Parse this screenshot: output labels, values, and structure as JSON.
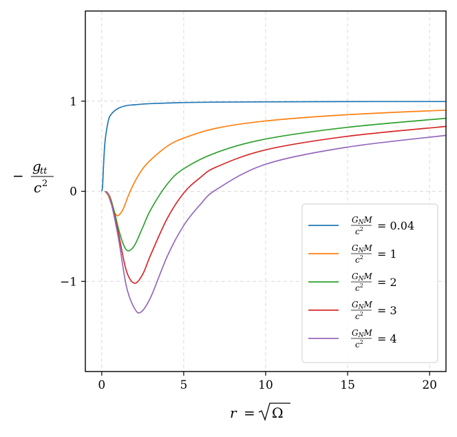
{
  "chart_data": {
    "type": "line",
    "xlabel_parts": {
      "var": "r",
      "eq": "=",
      "radicand": "Ω"
    },
    "ylabel_parts": {
      "minus": "−",
      "numer": "g",
      "numer_sub": "tt",
      "denom": "c",
      "denom_sup": "2"
    },
    "xlim": [
      -1,
      21
    ],
    "ylim": [
      -2,
      2
    ],
    "xticks": [
      0,
      5,
      10,
      15,
      20
    ],
    "xtick_labels": [
      "0",
      "5",
      "10",
      "15",
      "20"
    ],
    "yticks": [
      -1,
      0,
      1
    ],
    "ytick_labels": [
      "−1",
      "0",
      "1"
    ],
    "grid": true,
    "legend_position": "lower right",
    "legend_frac": {
      "numer": "G",
      "numer_sub": "N",
      "numer_tail": "M",
      "denom": "c",
      "denom_sup": "2"
    },
    "series": [
      {
        "param": "0.04",
        "color": "#1f77b4",
        "x": [
          0.0,
          0.05,
          0.1,
          0.2,
          0.4,
          0.6,
          1.0,
          1.5,
          2.0,
          3.0,
          5.0,
          7.0,
          10.0,
          15.0,
          20.0,
          21.0
        ],
        "y": [
          0.0,
          0.05,
          0.25,
          0.55,
          0.78,
          0.86,
          0.92,
          0.95,
          0.96,
          0.973,
          0.984,
          0.989,
          0.992,
          0.995,
          0.996,
          0.996
        ]
      },
      {
        "param": "1",
        "color": "#ff7f0e",
        "x": [
          0.2,
          0.4,
          0.6,
          0.8,
          1.0,
          1.3,
          1.6,
          2.0,
          2.5,
          3.0,
          4.0,
          5.0,
          7.0,
          10.0,
          15.0,
          21.0
        ],
        "y": [
          0.0,
          -0.05,
          -0.15,
          -0.24,
          -0.27,
          -0.2,
          -0.06,
          0.1,
          0.25,
          0.35,
          0.5,
          0.59,
          0.7,
          0.78,
          0.85,
          0.9
        ]
      },
      {
        "param": "2",
        "color": "#2ca02c",
        "x": [
          0.2,
          0.5,
          0.8,
          1.0,
          1.3,
          1.6,
          2.0,
          2.5,
          3.0,
          4.0,
          5.0,
          7.0,
          10.0,
          15.0,
          21.0
        ],
        "y": [
          0.0,
          -0.06,
          -0.25,
          -0.4,
          -0.58,
          -0.66,
          -0.6,
          -0.4,
          -0.2,
          0.08,
          0.25,
          0.43,
          0.58,
          0.71,
          0.81
        ]
      },
      {
        "param": "3",
        "color": "#d62728",
        "x": [
          0.2,
          0.5,
          1.0,
          1.5,
          2.0,
          2.5,
          3.0,
          4.0,
          5.0,
          6.0,
          7.0,
          10.0,
          15.0,
          21.0
        ],
        "y": [
          0.0,
          -0.07,
          -0.45,
          -0.88,
          -1.02,
          -0.92,
          -0.7,
          -0.3,
          -0.02,
          0.15,
          0.27,
          0.46,
          0.61,
          0.72
        ]
      },
      {
        "param": "4",
        "color": "#9467bd",
        "x": [
          0.2,
          0.5,
          1.0,
          1.5,
          2.0,
          2.4,
          3.0,
          4.0,
          5.0,
          6.0,
          7.0,
          10.0,
          15.0,
          21.0
        ],
        "y": [
          0.0,
          -0.08,
          -0.5,
          -1.05,
          -1.3,
          -1.34,
          -1.17,
          -0.72,
          -0.38,
          -0.15,
          0.02,
          0.3,
          0.49,
          0.62
        ]
      }
    ]
  }
}
